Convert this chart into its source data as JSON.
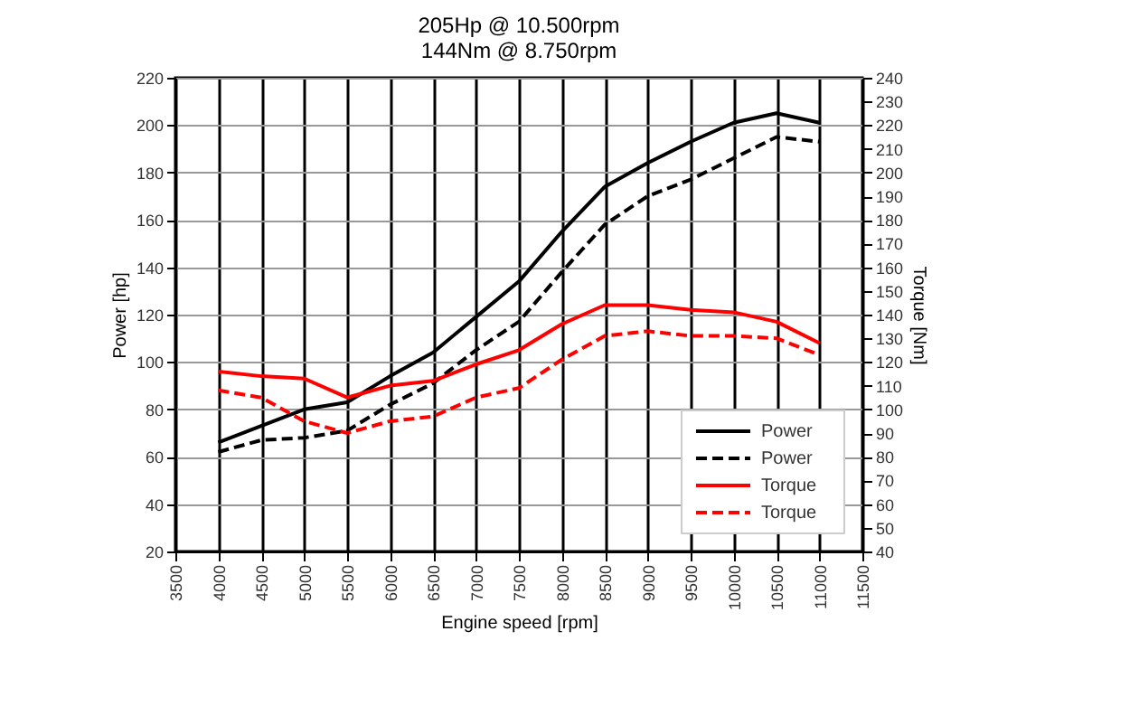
{
  "chart_data": {
    "type": "line",
    "title": [
      "205Hp  @ 10.500rpm",
      "144Nm @  8.750rpm"
    ],
    "xlabel": "Engine speed [rpm]",
    "ylabel": "Power [hp]",
    "y2label": "Torque [Nm]",
    "x": [
      4000,
      4500,
      5000,
      5500,
      6000,
      6500,
      7000,
      7500,
      8000,
      8500,
      9000,
      9500,
      10000,
      10500,
      11000
    ],
    "series": [
      {
        "name": "Power",
        "color": "#000000",
        "line_style": "solid",
        "values": [
          66,
          73,
          80,
          83,
          94,
          104,
          119,
          134,
          155,
          174,
          184,
          193,
          201,
          205,
          201
        ]
      },
      {
        "name": "Power",
        "color": "#000000",
        "line_style": "dashed",
        "values": [
          62,
          67,
          68,
          71,
          82,
          91,
          105,
          117,
          138,
          158,
          170,
          177,
          186,
          195,
          193
        ]
      },
      {
        "name": "Torque",
        "color": "#ff0000",
        "line_style": "solid",
        "axis": "y2",
        "values": [
          116,
          114,
          113,
          105,
          110,
          112,
          119,
          125,
          136,
          144,
          144,
          142,
          141,
          137,
          128
        ]
      },
      {
        "name": "Torque",
        "color": "#ff0000",
        "line_style": "dashed",
        "axis": "y2",
        "values": [
          108,
          105,
          95,
          90,
          95,
          97,
          105,
          109,
          121,
          131,
          133,
          131,
          131,
          130,
          123
        ]
      }
    ],
    "xlim": [
      3500,
      11500
    ],
    "xticks": [
      3500,
      4000,
      4500,
      5000,
      5500,
      6000,
      6500,
      7000,
      7500,
      8000,
      8500,
      9000,
      9500,
      10000,
      10500,
      11000,
      11500
    ],
    "ylim": [
      20,
      220
    ],
    "yticks": [
      20,
      40,
      60,
      80,
      100,
      120,
      140,
      160,
      180,
      200,
      220
    ],
    "y2lim": [
      40,
      240
    ],
    "y2ticks": [
      40,
      50,
      60,
      70,
      80,
      90,
      100,
      110,
      120,
      130,
      140,
      150,
      160,
      170,
      180,
      190,
      200,
      210,
      220,
      230,
      240
    ],
    "grid": true,
    "legend": "bottom right",
    "marker": "none"
  }
}
